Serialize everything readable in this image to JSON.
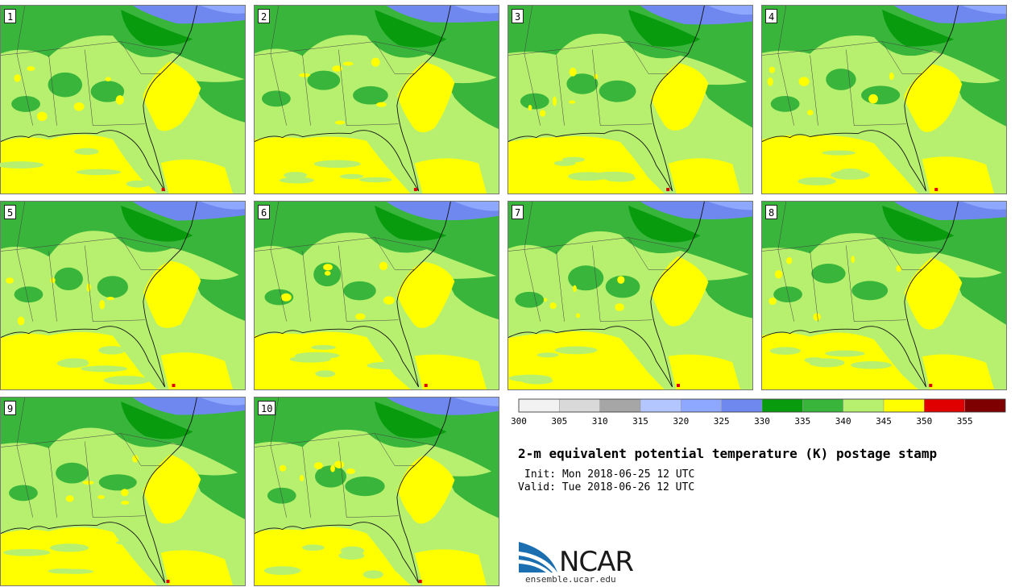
{
  "panels": [
    {
      "label": "1"
    },
    {
      "label": "2"
    },
    {
      "label": "3"
    },
    {
      "label": "4"
    },
    {
      "label": "5"
    },
    {
      "label": "6"
    },
    {
      "label": "7"
    },
    {
      "label": "8"
    },
    {
      "label": "9"
    },
    {
      "label": "10"
    }
  ],
  "colorbar": {
    "ticks": [
      "300",
      "305",
      "310",
      "315",
      "320",
      "325",
      "330",
      "335",
      "340",
      "345",
      "350",
      "355"
    ],
    "colors": [
      "#f2f2f2",
      "#d9d9d9",
      "#a6a6a6",
      "#b3c6ff",
      "#8fa8ff",
      "#6f88f0",
      "#089b0e",
      "#38b53a",
      "#b7f06e",
      "#ffff00",
      "#e00000",
      "#7f0000"
    ]
  },
  "title": "2-m equivalent potential temperature (K) postage stamp",
  "init_line": "Init: Mon 2018-06-25 12 UTC",
  "valid_line": "Valid: Tue 2018-06-26 12 UTC",
  "logo": {
    "name": "NCAR",
    "url": "ensemble.ucar.edu"
  }
}
